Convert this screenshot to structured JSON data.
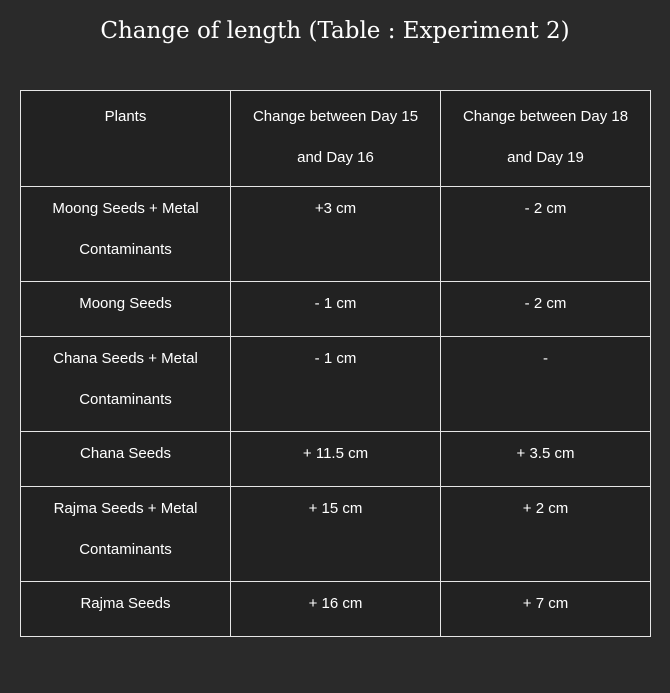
{
  "title": "Change of length (Table : Experiment 2)",
  "table": {
    "headers": [
      "Plants",
      "Change between Day 15 and Day 16",
      "Change between Day 18 and Day 19"
    ],
    "rows": [
      [
        "Moong Seeds + Metal Contaminants",
        "+3 cm",
        "- 2 cm"
      ],
      [
        "Moong Seeds",
        "- 1 cm",
        "- 2 cm"
      ],
      [
        "Chana Seeds + Metal Contaminants",
        "- 1 cm",
        "-"
      ],
      [
        "Chana Seeds",
        "+ 11.5 cm",
        "+ 3.5 cm"
      ],
      [
        "Rajma Seeds + Metal Contaminants",
        "+ 15 cm",
        "+ 2 cm"
      ],
      [
        "Rajma Seeds",
        "+ 16 cm",
        "+ 7 cm"
      ]
    ]
  }
}
